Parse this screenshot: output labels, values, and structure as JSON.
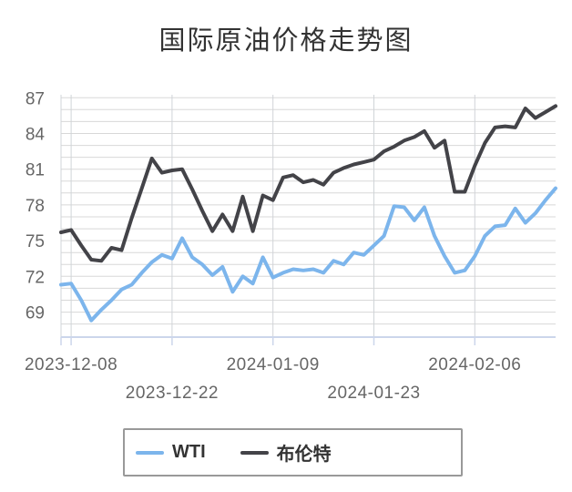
{
  "title": "国际原油价格走势图",
  "chart_data": {
    "type": "line",
    "title": "国际原油价格走势图",
    "x_ticks": [
      {
        "label": "2023-12-08",
        "point_index": 1,
        "row": 0
      },
      {
        "label": "2023-12-22",
        "point_index": 11,
        "row": 1
      },
      {
        "label": "2024-01-09",
        "point_index": 21,
        "row": 0
      },
      {
        "label": "2024-01-23",
        "point_index": 31,
        "row": 1
      },
      {
        "label": "2024-02-06",
        "point_index": 41,
        "row": 0
      }
    ],
    "y_ticks": [
      69,
      72,
      75,
      78,
      81,
      84,
      87
    ],
    "y_gridline_step": 1,
    "ylim": [
      66.9,
      87.25
    ],
    "grid": true,
    "legend_position": "bottom-center",
    "series": [
      {
        "name": "WTI",
        "color": "#7cb5ec",
        "values": [
          71.3,
          71.4,
          70.0,
          68.3,
          69.2,
          70.0,
          70.9,
          71.3,
          72.3,
          73.2,
          73.8,
          73.5,
          75.2,
          73.6,
          73.0,
          72.1,
          72.8,
          70.7,
          72.0,
          71.4,
          73.6,
          71.9,
          72.3,
          72.6,
          72.5,
          72.6,
          72.3,
          73.3,
          73.0,
          74.0,
          73.8,
          74.6,
          75.4,
          77.9,
          77.8,
          76.7,
          77.8,
          75.4,
          73.7,
          72.3,
          72.5,
          73.7,
          75.4,
          76.2,
          76.3,
          77.7,
          76.5,
          77.3,
          78.4,
          79.4
        ]
      },
      {
        "name": "布伦特",
        "color": "#434348",
        "values": [
          75.7,
          75.9,
          74.6,
          73.4,
          73.3,
          74.4,
          74.2,
          76.9,
          79.4,
          81.9,
          80.7,
          80.9,
          81.0,
          79.3,
          77.5,
          75.8,
          77.2,
          75.8,
          78.7,
          75.8,
          78.8,
          78.4,
          80.3,
          80.5,
          79.9,
          80.1,
          79.7,
          80.7,
          81.1,
          81.4,
          81.6,
          81.8,
          82.5,
          82.9,
          83.4,
          83.7,
          84.2,
          82.8,
          83.4,
          79.1,
          79.1,
          81.3,
          83.2,
          84.5,
          84.6,
          84.5,
          86.1,
          85.3,
          85.8,
          86.3
        ]
      }
    ]
  },
  "colors": {
    "background": "#ffffff",
    "title_text": "#333333",
    "axis_text": "#666666",
    "grid_horizontal": "#d8d8d8",
    "grid_vertical": "#d0d4d8",
    "axis_line": "#ccd6eb",
    "legend_border": "#999999",
    "legend_text": "#333333"
  }
}
